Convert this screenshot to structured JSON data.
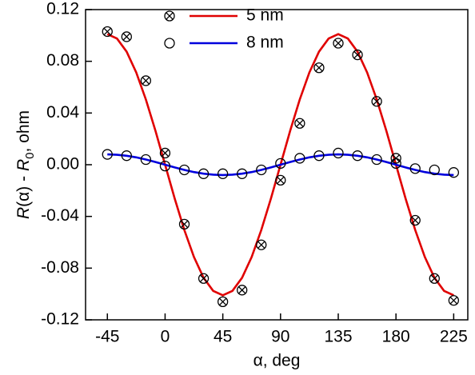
{
  "chart_data": {
    "type": "scatter",
    "xlabel": "α, deg",
    "ylabel": [
      "R",
      "(α) - ",
      "R",
      "0",
      ", ohm"
    ],
    "xlim": [
      -62,
      236
    ],
    "xticks": [
      -45,
      0,
      45,
      90,
      135,
      180,
      225
    ],
    "ylim": [
      -0.12,
      0.12
    ],
    "yticks": [
      -0.12,
      -0.08,
      -0.04,
      {
        "value": 0,
        "label": "0.00"
      },
      0.04,
      0.08,
      0.12
    ],
    "x": [
      -45,
      -30,
      -15,
      0,
      15,
      30,
      45,
      60,
      75,
      90,
      105,
      120,
      135,
      150,
      165,
      180,
      195,
      210,
      225
    ],
    "fit_x": [
      -45,
      -37.5,
      -30,
      -22.5,
      -15,
      -7.5,
      0,
      7.5,
      15,
      22.5,
      30,
      37.5,
      45,
      52.5,
      60,
      67.5,
      75,
      82.5,
      90,
      97.5,
      105,
      112.5,
      120,
      127.5,
      135,
      142.5,
      150,
      157.5,
      165,
      172.5,
      180,
      187.5,
      195,
      202.5,
      210,
      217.5,
      225
    ],
    "series": [
      {
        "name": "5 nm",
        "color": "#e00000",
        "marker": "circle-x",
        "values": [
          0.103,
          0.099,
          0.065,
          0.009,
          -0.046,
          -0.088,
          -0.106,
          -0.097,
          -0.062,
          -0.012,
          0.032,
          0.075,
          0.094,
          0.085,
          0.049,
          0.005,
          -0.043,
          -0.088,
          -0.105
        ],
        "fit_values": [
          0.101,
          0.0976,
          0.0875,
          0.0714,
          0.0505,
          0.0262,
          0,
          -0.0262,
          -0.0505,
          -0.0714,
          -0.0875,
          -0.0976,
          -0.101,
          -0.0976,
          -0.0875,
          -0.0714,
          -0.0505,
          -0.0262,
          0,
          0.0262,
          0.0505,
          0.0714,
          0.0875,
          0.0976,
          0.101,
          0.0976,
          0.0875,
          0.0714,
          0.0505,
          0.0262,
          0,
          -0.0262,
          -0.0505,
          -0.0714,
          -0.0875,
          -0.0976,
          -0.101
        ]
      },
      {
        "name": "8 nm",
        "color": "#0000dd",
        "marker": "circle",
        "values": [
          0.008,
          0.007,
          0.004,
          -0.001,
          -0.004,
          -0.007,
          -0.007,
          -0.007,
          -0.004,
          0.001,
          0.005,
          0.007,
          0.009,
          0.007,
          0.004,
          0.001,
          -0.003,
          -0.004,
          -0.006
        ],
        "fit_values": [
          0.008,
          0.0077,
          0.0069,
          0.0057,
          0.004,
          0.0021,
          0,
          -0.0021,
          -0.004,
          -0.0057,
          -0.0069,
          -0.0077,
          -0.008,
          -0.0077,
          -0.0069,
          -0.0057,
          -0.004,
          -0.0021,
          0,
          0.0021,
          0.004,
          0.0057,
          0.0069,
          0.0077,
          0.008,
          0.0077,
          0.0069,
          0.0057,
          0.004,
          0.0021,
          0,
          -0.0021,
          -0.004,
          -0.0057,
          -0.0069,
          -0.0077,
          -0.008
        ]
      }
    ]
  }
}
